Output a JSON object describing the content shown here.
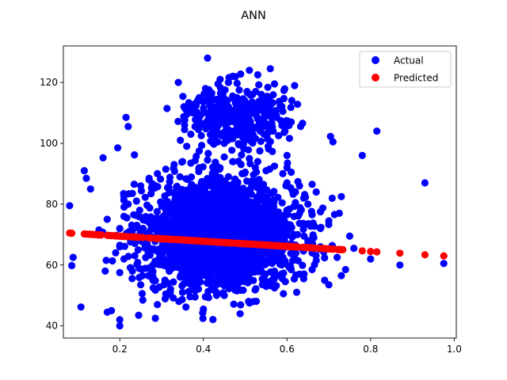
{
  "chart_data": {
    "type": "scatter",
    "title": "ANN",
    "xlabel": "",
    "ylabel": "",
    "xlim": [
      0.065,
      1.005
    ],
    "ylim": [
      36,
      132
    ],
    "xticks": [
      0.2,
      0.4,
      0.6,
      0.8,
      1.0
    ],
    "xtick_labels": [
      "0.2",
      "0.4",
      "0.6",
      "0.8",
      "1.0"
    ],
    "yticks": [
      40,
      60,
      80,
      100,
      120
    ],
    "ytick_labels": [
      "40",
      "60",
      "80",
      "100",
      "120"
    ],
    "grid": false,
    "legend_position": "top-right",
    "series": [
      {
        "name": "Actual",
        "color": "#0000ff",
        "points": [
          [
            0.08,
            79.5
          ],
          [
            0.085,
            59.8
          ],
          [
            0.115,
            91.0
          ],
          [
            0.12,
            88.5
          ],
          [
            0.13,
            85.0
          ],
          [
            0.15,
            71.5
          ],
          [
            0.16,
            95.2
          ],
          [
            0.165,
            58.0
          ],
          [
            0.17,
            44.5
          ],
          [
            0.18,
            45.0
          ],
          [
            0.19,
            64.0
          ],
          [
            0.195,
            98.5
          ],
          [
            0.2,
            57.5
          ],
          [
            0.2,
            40.0
          ],
          [
            0.2,
            42.0
          ],
          [
            0.21,
            82.5
          ],
          [
            0.215,
            108.5
          ],
          [
            0.22,
            105.5
          ],
          [
            0.235,
            96.2
          ],
          [
            0.245,
            43.5
          ],
          [
            0.255,
            48.5
          ],
          [
            0.27,
            88.5
          ],
          [
            0.285,
            42.5
          ],
          [
            0.29,
            47.0
          ],
          [
            0.34,
            120.0
          ],
          [
            0.345,
            101.0
          ],
          [
            0.355,
            104.5
          ],
          [
            0.355,
            106.0
          ],
          [
            0.36,
            99.0
          ],
          [
            0.36,
            109.5
          ],
          [
            0.365,
            111.0
          ],
          [
            0.37,
            103.0
          ],
          [
            0.375,
            110.0
          ],
          [
            0.38,
            113.0
          ],
          [
            0.38,
            105.5
          ],
          [
            0.385,
            108.0
          ],
          [
            0.39,
            97.5
          ],
          [
            0.39,
            115.0
          ],
          [
            0.395,
            102.5
          ],
          [
            0.4,
            111.5
          ],
          [
            0.4,
            45.5
          ],
          [
            0.405,
            118.0
          ],
          [
            0.41,
            128.0
          ],
          [
            0.41,
            106.5
          ],
          [
            0.415,
            114.0
          ],
          [
            0.42,
            100.5
          ],
          [
            0.42,
            116.5
          ],
          [
            0.425,
            109.0
          ],
          [
            0.43,
            112.0
          ],
          [
            0.435,
            119.5
          ],
          [
            0.435,
            103.5
          ],
          [
            0.44,
            107.5
          ],
          [
            0.445,
            117.5
          ],
          [
            0.45,
            110.5
          ],
          [
            0.45,
            100.0
          ],
          [
            0.455,
            113.5
          ],
          [
            0.46,
            120.0
          ],
          [
            0.46,
            104.5
          ],
          [
            0.465,
            108.5
          ],
          [
            0.47,
            115.5
          ],
          [
            0.47,
            101.5
          ],
          [
            0.475,
            111.0
          ],
          [
            0.48,
            106.0
          ],
          [
            0.485,
            99.5
          ],
          [
            0.49,
            109.5
          ],
          [
            0.495,
            113.0
          ],
          [
            0.5,
            103.5
          ],
          [
            0.505,
            107.0
          ],
          [
            0.51,
            124.0
          ],
          [
            0.51,
            110.5
          ],
          [
            0.515,
            100.5
          ],
          [
            0.52,
            112.5
          ],
          [
            0.525,
            105.0
          ],
          [
            0.53,
            122.5
          ],
          [
            0.53,
            108.0
          ],
          [
            0.535,
            97.5
          ],
          [
            0.54,
            114.0
          ],
          [
            0.545,
            103.0
          ],
          [
            0.55,
            109.5
          ],
          [
            0.555,
            99.0
          ],
          [
            0.56,
            124.5
          ],
          [
            0.56,
            111.0
          ],
          [
            0.565,
            105.5
          ],
          [
            0.57,
            119.5
          ],
          [
            0.575,
            108.5
          ],
          [
            0.58,
            102.5
          ],
          [
            0.585,
            107.5
          ],
          [
            0.59,
            110.5
          ],
          [
            0.595,
            104.0
          ],
          [
            0.6,
            96.0
          ],
          [
            0.61,
            107.0
          ],
          [
            0.61,
            90.5
          ],
          [
            0.6,
            92.0
          ],
          [
            0.62,
            84.0
          ],
          [
            0.63,
            86.0
          ],
          [
            0.64,
            82.0
          ],
          [
            0.65,
            80.0
          ],
          [
            0.66,
            86.5
          ],
          [
            0.67,
            84.0
          ],
          [
            0.68,
            77.5
          ],
          [
            0.7,
            74.5
          ],
          [
            0.71,
            100.5
          ],
          [
            0.73,
            82.5
          ],
          [
            0.725,
            77.0
          ],
          [
            0.75,
            69.5
          ],
          [
            0.73,
            56.5
          ],
          [
            0.7,
            53.5
          ],
          [
            0.69,
            55.0
          ],
          [
            0.72,
            62.5
          ],
          [
            0.74,
            58.5
          ],
          [
            0.76,
            65.5
          ],
          [
            0.78,
            96.0
          ],
          [
            0.8,
            62.0
          ],
          [
            0.815,
            104.0
          ],
          [
            0.87,
            60.0
          ],
          [
            0.93,
            87.0
          ],
          [
            0.975,
            60.5
          ],
          [
            0.63,
            57.0
          ],
          [
            0.64,
            55.5
          ],
          [
            0.61,
            58.5
          ],
          [
            0.55,
            53.0
          ],
          [
            0.57,
            52.5
          ],
          [
            0.52,
            48.0
          ],
          [
            0.48,
            51.5
          ],
          [
            0.45,
            50.0
          ],
          [
            0.42,
            52.0
          ],
          [
            0.38,
            49.5
          ],
          [
            0.35,
            51.0
          ],
          [
            0.31,
            50.5
          ],
          [
            0.28,
            52.5
          ],
          [
            0.25,
            53.5
          ],
          [
            0.23,
            58.0
          ],
          [
            0.21,
            62.0
          ],
          [
            0.2,
            66.0
          ],
          [
            0.2,
            72.0
          ],
          [
            0.21,
            76.0
          ],
          [
            0.22,
            80.0
          ],
          [
            0.23,
            83.5
          ],
          [
            0.24,
            81.0
          ],
          [
            0.25,
            86.0
          ],
          [
            0.27,
            88.0
          ],
          [
            0.29,
            90.0
          ],
          [
            0.31,
            91.5
          ],
          [
            0.33,
            93.0
          ],
          [
            0.35,
            94.0
          ],
          [
            0.37,
            93.5
          ],
          [
            0.39,
            92.0
          ],
          [
            0.41,
            94.5
          ],
          [
            0.43,
            93.0
          ],
          [
            0.45,
            95.5
          ],
          [
            0.47,
            94.0
          ],
          [
            0.49,
            93.0
          ],
          [
            0.51,
            95.0
          ],
          [
            0.53,
            94.0
          ],
          [
            0.55,
            91.0
          ],
          [
            0.57,
            92.5
          ],
          [
            0.59,
            90.0
          ],
          [
            0.6,
            87.0
          ],
          [
            0.62,
            80.5
          ],
          [
            0.63,
            77.0
          ],
          [
            0.64,
            73.0
          ],
          [
            0.65,
            68.0
          ],
          [
            0.66,
            64.0
          ],
          [
            0.67,
            61.5
          ],
          [
            0.68,
            66.0
          ],
          [
            0.68,
            72.0
          ],
          [
            0.66,
            76.5
          ],
          [
            0.66,
            58.5
          ],
          [
            0.5,
            110.0
          ],
          [
            0.48,
            115.0
          ],
          [
            0.44,
            121.0
          ],
          [
            0.47,
            122.0
          ],
          [
            0.42,
            105.0
          ],
          [
            0.46,
            112.0
          ]
        ],
        "dense_regions": [
          {
            "x_mean": 0.44,
            "x_sd": 0.085,
            "y_mean": 70,
            "y_sd": 8.5,
            "count": 2600
          },
          {
            "x_mean": 0.48,
            "x_sd": 0.06,
            "y_mean": 109,
            "y_sd": 5,
            "count": 320
          }
        ]
      },
      {
        "name": "Predicted",
        "color": "#ff0000",
        "trend_x": [
          0.08,
          0.975
        ],
        "trend_y": [
          70.5,
          63.0
        ]
      }
    ]
  }
}
